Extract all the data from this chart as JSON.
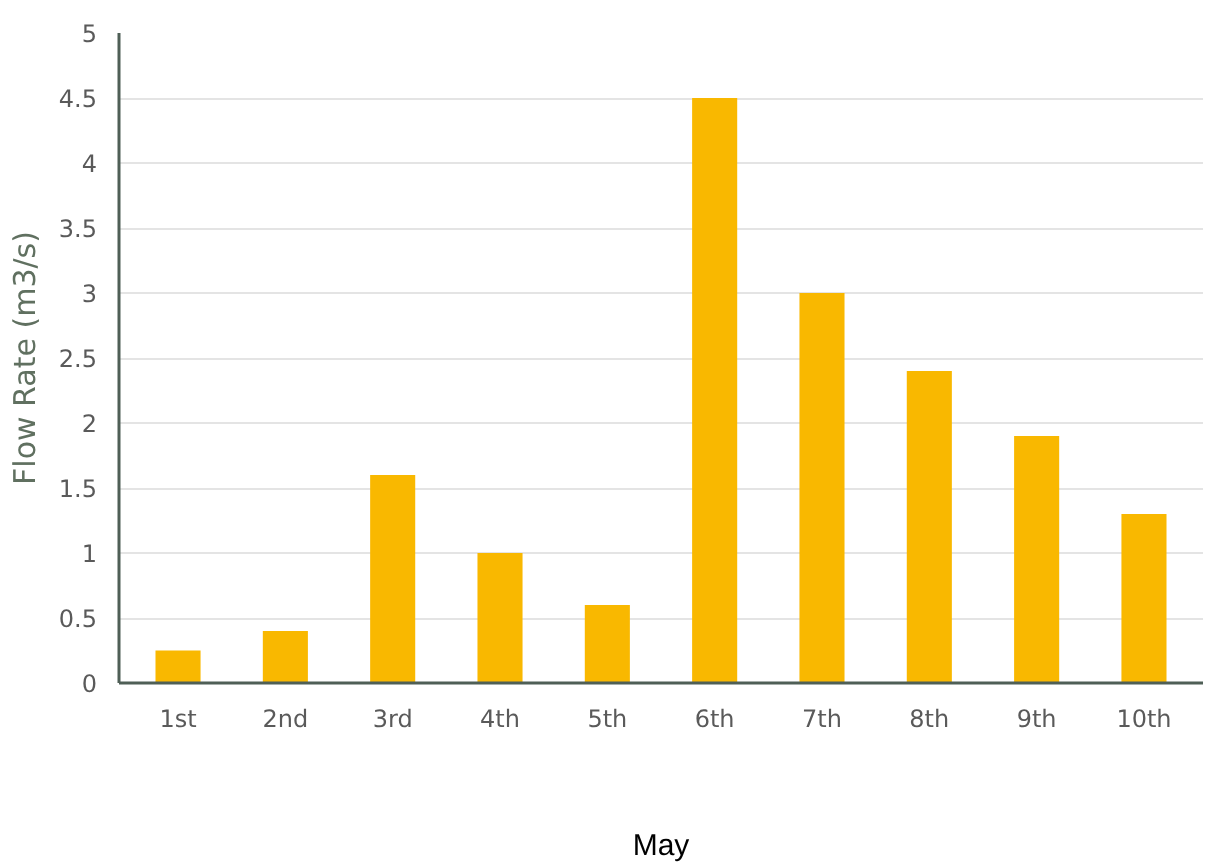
{
  "chart_data": {
    "type": "bar",
    "xlabel": "May",
    "ylabel": "Flow Rate (m3/s)",
    "categories": [
      "1st",
      "2nd",
      "3rd",
      "4th",
      "5th",
      "6th",
      "7th",
      "8th",
      "9th",
      "10th"
    ],
    "values": [
      0.25,
      0.4,
      1.6,
      1.0,
      0.6,
      4.5,
      3.0,
      2.4,
      1.9,
      1.3
    ],
    "color": "#f9b800",
    "ylim": [
      0,
      5
    ],
    "yticks": [
      0,
      0.5,
      1,
      1.5,
      2,
      2.5,
      3,
      3.5,
      4,
      4.5,
      5
    ],
    "grid": "y"
  }
}
